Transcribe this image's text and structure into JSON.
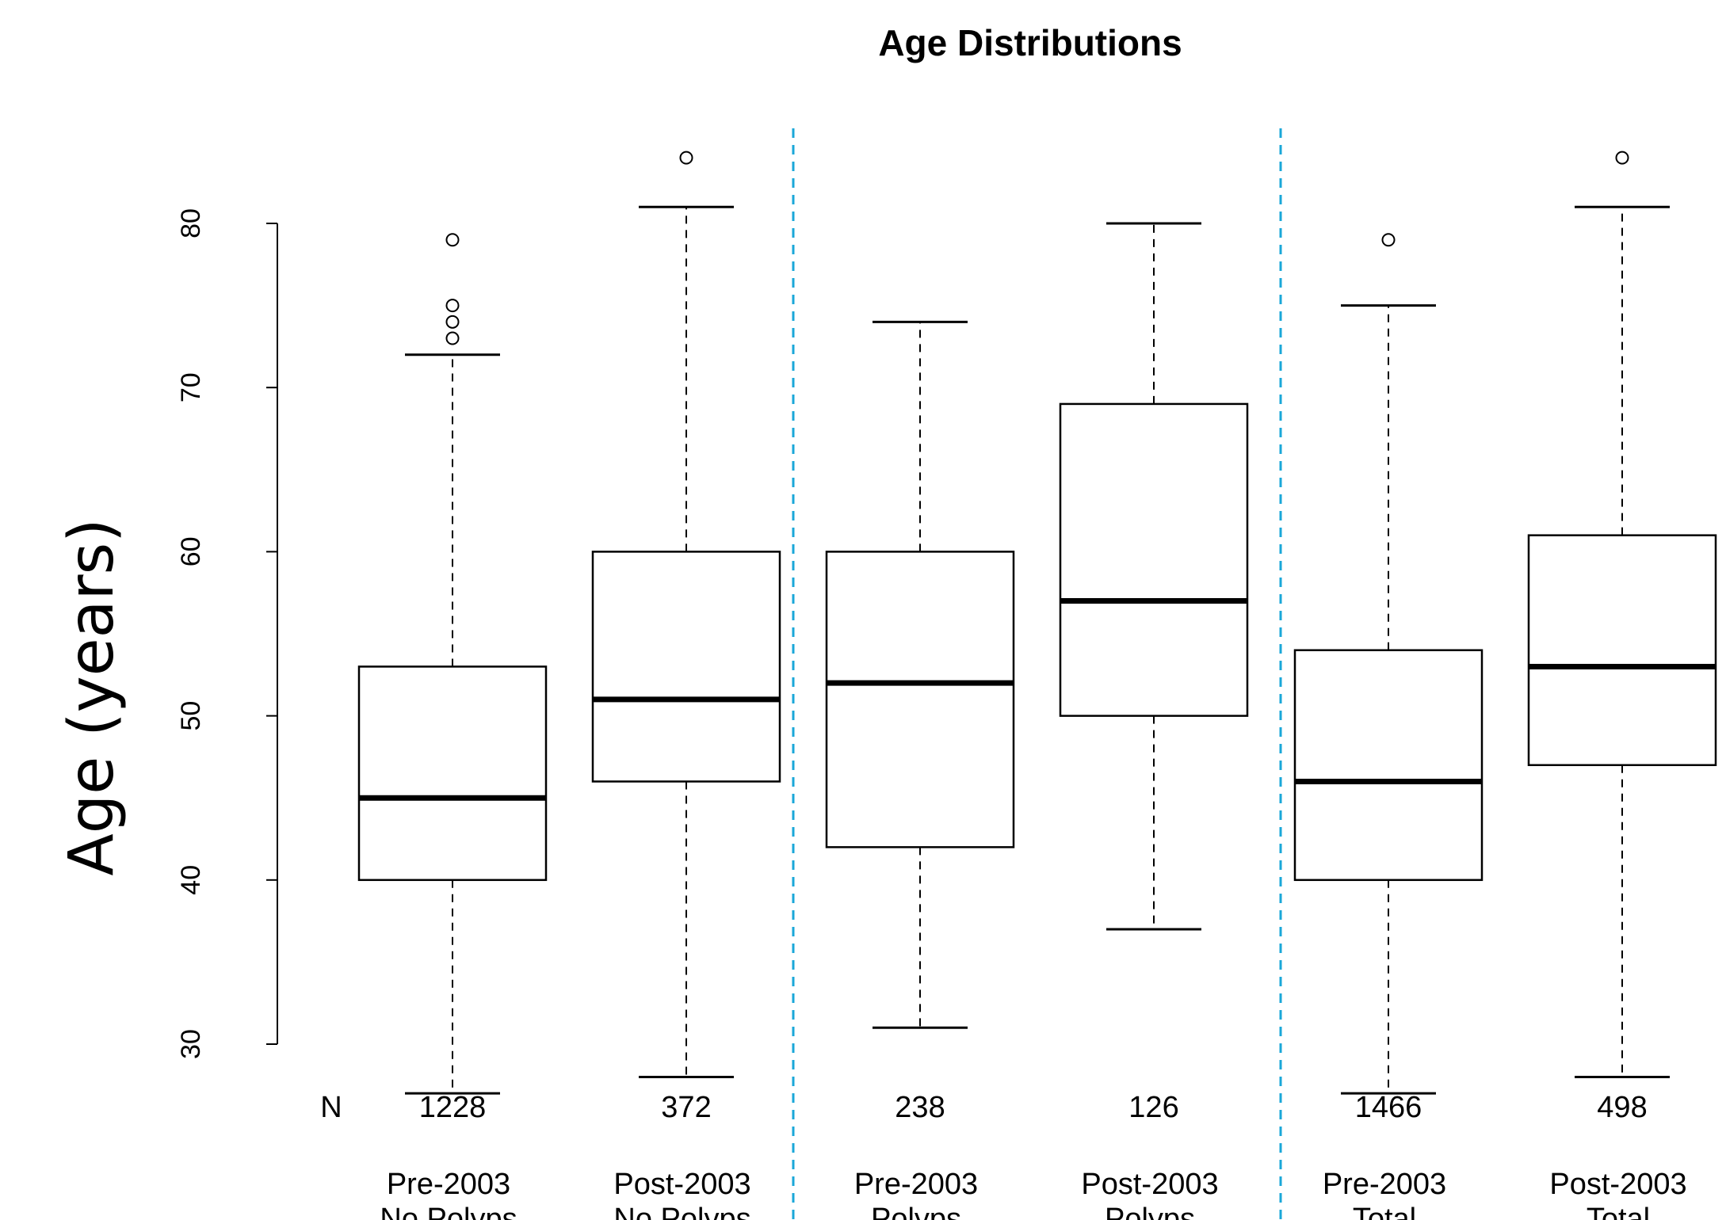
{
  "chart_data": {
    "type": "box",
    "title": "Age Distributions",
    "ylabel": "Age (years)",
    "ylim": [
      30,
      80
    ],
    "yticks": [
      30,
      40,
      50,
      60,
      70,
      80
    ],
    "grid": false,
    "n_row_label": "N",
    "separator_color": "#1aa7d8",
    "groups": [
      {
        "label_line1": "Pre-2003",
        "label_line2": "No Polyps",
        "n": "1228",
        "whisker_low": 27,
        "q1": 40,
        "median": 45,
        "q3": 53,
        "whisker_high": 72,
        "outliers": [
          73,
          74,
          75,
          79
        ]
      },
      {
        "label_line1": "Post-2003",
        "label_line2": "No Polyps",
        "n": "372",
        "whisker_low": 28,
        "q1": 46,
        "median": 51,
        "q3": 60,
        "whisker_high": 81,
        "outliers": [
          84
        ]
      },
      {
        "label_line1": "Pre-2003",
        "label_line2": "Polyps",
        "n": "238",
        "whisker_low": 31,
        "q1": 42,
        "median": 52,
        "q3": 60,
        "whisker_high": 74,
        "outliers": []
      },
      {
        "label_line1": "Post-2003",
        "label_line2": "Polyps",
        "n": "126",
        "whisker_low": 37,
        "q1": 50,
        "median": 57,
        "q3": 69,
        "whisker_high": 80,
        "outliers": []
      },
      {
        "label_line1": "Pre-2003",
        "label_line2": "Total",
        "n": "1466",
        "whisker_low": 27,
        "q1": 40,
        "median": 46,
        "q3": 54,
        "whisker_high": 75,
        "outliers": [
          79
        ]
      },
      {
        "label_line1": "Post-2003",
        "label_line2": "Total",
        "n": "498",
        "whisker_low": 28,
        "q1": 47,
        "median": 53,
        "q3": 61,
        "whisker_high": 81,
        "outliers": [
          84
        ]
      }
    ]
  }
}
